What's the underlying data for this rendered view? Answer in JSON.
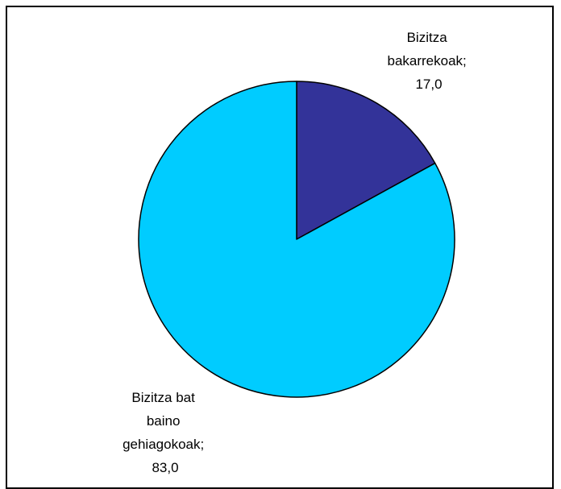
{
  "chart_data": {
    "type": "pie",
    "title": "",
    "slices": [
      {
        "label_lines": [
          "Bizitza",
          "bakarrekoak;",
          "17,0"
        ],
        "value": 17.0,
        "color": "#333399"
      },
      {
        "label_lines": [
          "Bizitza bat",
          "baino",
          "gehiagokoak;",
          "83,0"
        ],
        "value": 83.0,
        "color": "#00CCFF"
      }
    ],
    "start_angle_deg": 0,
    "direction": "clockwise",
    "legend": "none",
    "outline_color": "#000000",
    "frame_border": true
  }
}
